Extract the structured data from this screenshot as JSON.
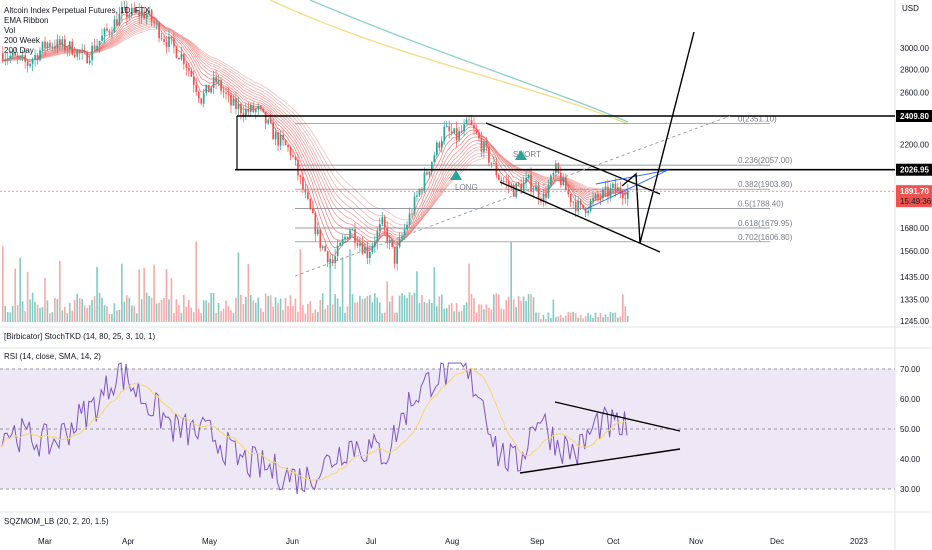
{
  "legend": {
    "symbol": "Altcoin Index Perpetual Futures, 1D, FTX",
    "lines": [
      "EMA Ribbon",
      "Vol",
      "200 Week",
      "200 Day"
    ]
  },
  "panes": {
    "stoch_title": "[Birbicator] StochTKD (14, 80, 25, 3, 10, 1)",
    "rsi_title": "RSI (14, close, SMA, 14, 2)",
    "sqz_title": "SQZMOM_LB (20, 2, 20, 1.5)"
  },
  "price_axis": {
    "currency": "USD",
    "ticks": [
      "3000.00",
      "2800.00",
      "2600.00",
      "2409.80",
      "2200.00",
      "2026.95",
      "1891.70",
      "1680.00",
      "1560.00",
      "1435.00",
      "1335.00",
      "1245.00"
    ],
    "current_price": "1891.70",
    "countdown": "15:49:36"
  },
  "rsi_axis": {
    "ticks": [
      "70.00",
      "60.00",
      "50.00",
      "40.00",
      "30.00"
    ]
  },
  "time_axis": {
    "labels": [
      "Mar",
      "Apr",
      "May",
      "Jun",
      "Jul",
      "Aug",
      "Sep",
      "Oct",
      "Nov",
      "Dec",
      "2023"
    ]
  },
  "fib_labels": [
    "0(2351.10)",
    "0.236(2057.00)",
    "0.382(1903.80)",
    "0.5(1788.40)",
    "0.618(1679.95)",
    "0.702(1606.80)"
  ],
  "annotations": {
    "short": "SHORT",
    "long": "LONG"
  },
  "colors": {
    "up": "#26a69a",
    "down": "#ef5350",
    "vol_up": "#80cbc4",
    "vol_down": "#f7a9a7",
    "rsi_line": "#7e57c2",
    "rsi_ma": "#f5d76e",
    "rsi_band": "#ede7f6",
    "ema200w": "#8fd3c9",
    "ema200d": "#f0e08a",
    "price_tag": "#ef5350",
    "level_tag": "#000000"
  },
  "chart_data": {
    "type": "line",
    "price_series": {
      "name": "Altcoin Index Perpetual Futures",
      "x": [
        "Mar",
        "Apr",
        "May",
        "Jun",
        "Jul",
        "Aug",
        "Sep",
        "Oct"
      ],
      "values": [
        3050,
        3200,
        2700,
        1500,
        1600,
        2300,
        1900,
        1891.7
      ]
    },
    "horizontal_levels": [
      2409.8,
      2026.95
    ],
    "fib_levels": [
      2351.1,
      2057.0,
      1903.8,
      1788.4,
      1679.95,
      1606.8
    ],
    "rsi": {
      "x": [
        "Mar",
        "Apr",
        "May",
        "Jun",
        "Jul",
        "Aug",
        "Sep",
        "Oct"
      ],
      "values": [
        50,
        70,
        45,
        33,
        42,
        68,
        40,
        50
      ],
      "bands": [
        30,
        70
      ],
      "mid": 50
    },
    "ylim_price": [
      1245,
      3100
    ],
    "ylim_rsi": [
      25,
      75
    ]
  }
}
